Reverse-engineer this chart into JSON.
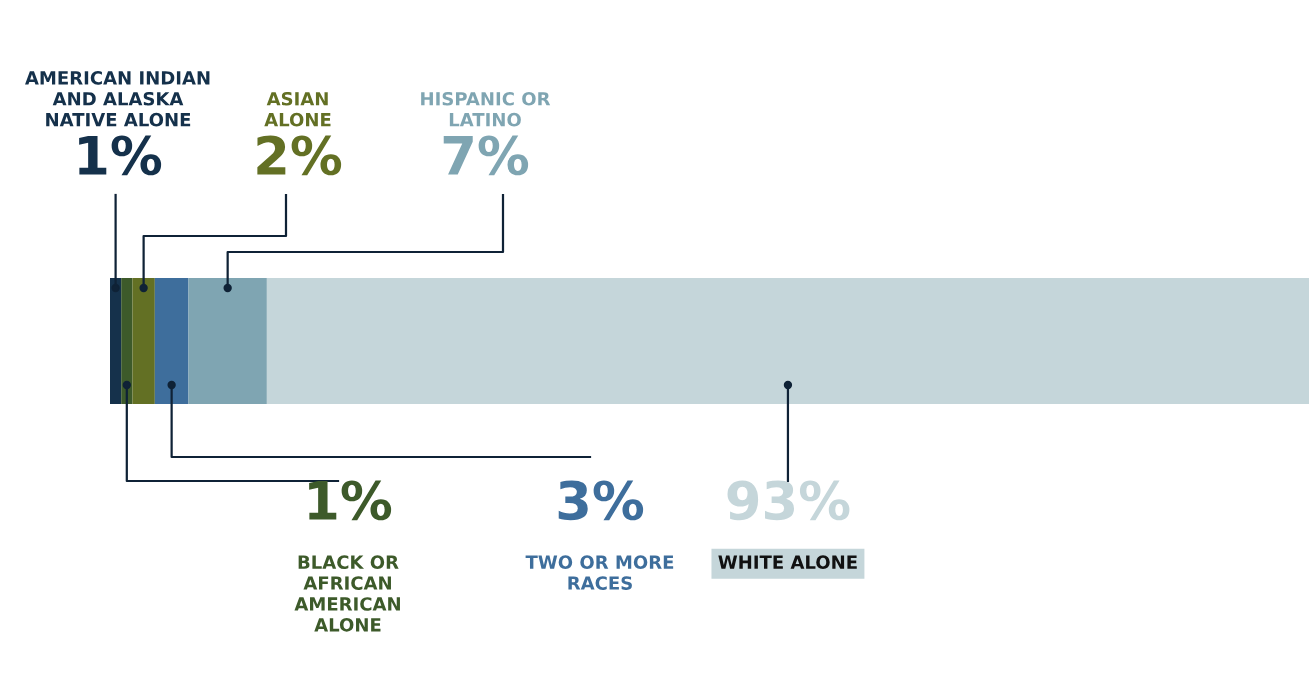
{
  "chart_data": {
    "type": "bar",
    "orientation": "horizontal",
    "stacked": true,
    "categories": [
      null
    ],
    "xlim": [
      0,
      107
    ],
    "series": [
      {
        "name": "AMERICAN INDIAN AND ALASKA NATIVE ALONE",
        "color": "#15314b",
        "values": [
          1
        ],
        "value_labels": [
          "1%"
        ]
      },
      {
        "name": "BLACK OR AFRICAN AMERICAN ALONE",
        "color": "#3d5a2a",
        "values": [
          1
        ],
        "value_labels": [
          "1%"
        ]
      },
      {
        "name": "ASIAN ALONE",
        "color": "#637024",
        "values": [
          2
        ],
        "value_labels": [
          "2%"
        ]
      },
      {
        "name": "TWO OR MORE RACES",
        "color": "#3e6e9c",
        "values": [
          3
        ],
        "value_labels": [
          "3%"
        ]
      },
      {
        "name": "HISPANIC OR LATINO",
        "color": "#7fa5b2",
        "values": [
          7
        ],
        "value_labels": [
          "7%"
        ]
      },
      {
        "name": "WHITE ALONE",
        "color": "#c5d6da",
        "values": [
          93
        ],
        "value_labels": [
          "93%"
        ]
      }
    ]
  }
}
